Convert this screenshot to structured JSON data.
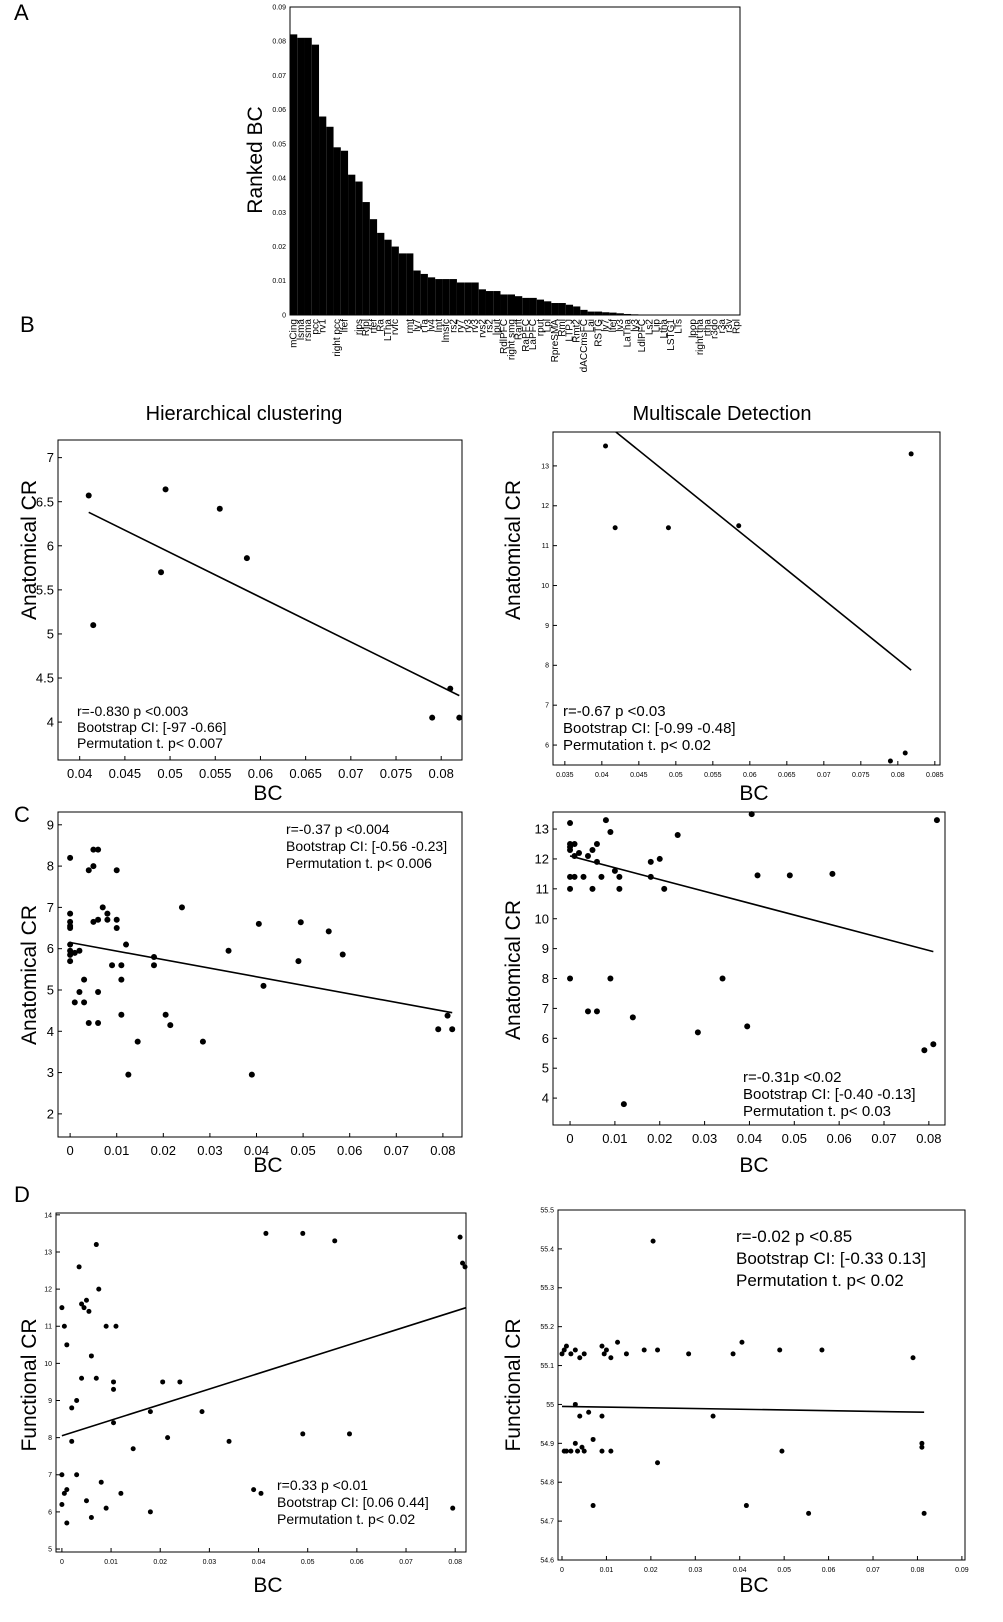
{
  "panel_labels": [
    "A",
    "B",
    "C",
    "D"
  ],
  "chart_data": [
    {
      "type": "bar",
      "ylabel": "Ranked BC",
      "color": "#000000",
      "categories": [
        "mCing",
        "lsma",
        "rsma",
        "pcc",
        "rv1",
        null,
        "right pcc",
        "lfef",
        null,
        "rips",
        "Rlpl",
        "rfef",
        "Ra",
        "LTha",
        "rvfc",
        null,
        "rmt",
        "ly7",
        "rTa",
        "lv4",
        "lmt",
        "lmsfc",
        "rs2",
        "ry7",
        "ry3",
        "rv3",
        "rvs2",
        "rs2",
        "lput",
        "RdlPFC",
        "right smg",
        "Rant",
        "RaPFC",
        "LaPFC",
        "rput",
        "Lpl",
        "RpreSMA",
        "Rml",
        "LTPJ",
        "Rmt2",
        "dACCmsFC",
        "Lai",
        "RSTG",
        "lv7",
        "lfef",
        "lv3",
        "LaTha",
        "ly3",
        "LdlPFC",
        "Ls2",
        "Lip",
        "Ltha",
        "LSTG1",
        "LTs",
        null,
        "lpop",
        "right tha",
        "rtha",
        "r3do",
        "r3a",
        "r3v",
        "Rpl"
      ],
      "values": [
        0.082,
        0.081,
        0.081,
        0.079,
        0.058,
        0.055,
        0.049,
        0.048,
        0.041,
        0.039,
        0.033,
        0.028,
        0.024,
        0.022,
        0.02,
        0.018,
        0.018,
        0.013,
        0.012,
        0.011,
        0.0105,
        0.0105,
        0.0105,
        0.0095,
        0.0095,
        0.0095,
        0.0075,
        0.007,
        0.007,
        0.006,
        0.006,
        0.0055,
        0.005,
        0.005,
        0.0045,
        0.004,
        0.0035,
        0.0035,
        0.003,
        0.0025,
        0.0015,
        0.001,
        0.001,
        0.0008,
        0.0007,
        0.0005,
        0.0003,
        0.0002,
        0,
        0,
        0,
        0,
        0,
        0,
        0,
        0,
        0,
        0,
        0,
        0,
        0,
        0
      ],
      "ylim": [
        0,
        0.09
      ],
      "yticks": [
        0,
        0.01,
        0.02,
        0.03,
        0.04,
        0.05,
        0.06,
        0.07,
        0.08,
        0.09
      ]
    },
    {
      "type": "scatter",
      "title": "Hierarchical clustering",
      "xlabel": "BC",
      "ylabel": "Anatomical CR",
      "color": "#000000",
      "x": [
        0.041,
        0.0415,
        0.049,
        0.0495,
        0.0555,
        0.0585,
        0.079,
        0.081,
        0.082
      ],
      "y": [
        6.57,
        5.1,
        5.7,
        6.64,
        6.42,
        5.86,
        4.05,
        4.38,
        4.05
      ],
      "fit": {
        "x": [
          0.041,
          0.082
        ],
        "y": [
          6.38,
          4.3
        ]
      },
      "annotations": [
        "r=-0.830 p <0.003",
        "Bootstrap CI: [-97 -0.66]",
        "Permutation t. p< 0.007"
      ],
      "xlim": [
        0.0376,
        0.0823
      ],
      "ylim": [
        3.57,
        7.2
      ],
      "xticks": [
        0.04,
        0.045,
        0.05,
        0.055,
        0.06,
        0.065,
        0.07,
        0.075,
        0.08
      ],
      "yticks": [
        4,
        4.5,
        5,
        5.5,
        6,
        6.5,
        7
      ]
    },
    {
      "type": "scatter",
      "title": "Multiscale Detection",
      "xlabel": "BC",
      "ylabel": "Anatomical CR",
      "color": "#000000",
      "x": [
        0.0405,
        0.0418,
        0.049,
        0.0585,
        0.0818,
        0.079,
        0.081
      ],
      "y": [
        13.5,
        11.45,
        11.45,
        11.5,
        13.3,
        5.6,
        5.8
      ],
      "fit": {
        "x": [
          0.0419,
          0.0818
        ],
        "y": [
          13.85,
          7.88
        ]
      },
      "annotations": [
        "r=-0.67 p <0.03",
        "Bootstrap CI: [-0.99 -0.48]",
        "Permutation t. p< 0.02"
      ],
      "xlim": [
        0.0334,
        0.0857
      ],
      "ylim": [
        5.5,
        13.85
      ],
      "xticks": [
        0.035,
        0.04,
        0.045,
        0.05,
        0.055,
        0.06,
        0.065,
        0.07,
        0.075,
        0.08,
        0.085
      ],
      "yticks": [
        6,
        7,
        8,
        9,
        10,
        11,
        12,
        13
      ]
    },
    {
      "type": "scatter",
      "xlabel": "BC",
      "ylabel": "Anatomical CR",
      "color": "#000000",
      "x": [
        0,
        0,
        0,
        0,
        0,
        0,
        0,
        0,
        0,
        0.001,
        0.001,
        0.002,
        0.002,
        0.003,
        0.003,
        0.004,
        0.004,
        0.005,
        0.005,
        0.005,
        0.006,
        0.006,
        0.006,
        0.006,
        0.007,
        0.008,
        0.008,
        0.009,
        0.01,
        0.01,
        0.01,
        0.011,
        0.011,
        0.011,
        0.012,
        0.0125,
        0.0145,
        0.018,
        0.018,
        0.0205,
        0.0215,
        0.024,
        0.0285,
        0.034,
        0.039,
        0.0405,
        0.0415,
        0.049,
        0.0495,
        0.0555,
        0.0585,
        0.079,
        0.081,
        0.082
      ],
      "y": [
        8.2,
        6.85,
        6.65,
        6.55,
        6.5,
        6.1,
        5.95,
        5.85,
        5.7,
        5.9,
        4.7,
        5.95,
        4.95,
        5.25,
        4.7,
        7.9,
        4.2,
        8.4,
        6.65,
        8.0,
        8.4,
        6.7,
        4.2,
        4.95,
        7.0,
        6.7,
        6.85,
        5.6,
        7.9,
        6.7,
        6.5,
        4.4,
        5.6,
        5.25,
        6.1,
        2.95,
        3.75,
        5.8,
        5.6,
        4.4,
        4.15,
        7.0,
        3.75,
        5.95,
        2.95,
        6.6,
        5.1,
        5.7,
        6.64,
        6.42,
        5.86,
        4.05,
        4.38,
        4.05
      ],
      "fit": {
        "x": [
          0,
          0.082
        ],
        "y": [
          6.15,
          4.45
        ]
      },
      "annotations": [
        "r=-0.37 p <0.004",
        "Bootstrap CI: [-0.56 -0.23]",
        "Permutation t. p< 0.006"
      ],
      "xlim": [
        -0.0026,
        0.0841
      ],
      "ylim": [
        1.44,
        9.31
      ],
      "xticks": [
        0,
        0.01,
        0.02,
        0.03,
        0.04,
        0.05,
        0.06,
        0.07,
        0.08
      ],
      "yticks": [
        2,
        3,
        4,
        5,
        6,
        7,
        8,
        9
      ]
    },
    {
      "type": "scatter",
      "xlabel": "BC",
      "ylabel": "Anatomical CR",
      "color": "#000000",
      "x": [
        0,
        0,
        0,
        0,
        0,
        0,
        0,
        0.001,
        0.001,
        0.001,
        0.002,
        0.003,
        0.004,
        0.004,
        0.005,
        0.005,
        0.006,
        0.006,
        0.006,
        0.007,
        0.008,
        0.009,
        0.009,
        0.01,
        0.011,
        0.011,
        0.012,
        0.014,
        0.018,
        0.018,
        0.02,
        0.021,
        0.024,
        0.0285,
        0.034,
        0.0395,
        0.0405,
        0.0418,
        0.049,
        0.0585,
        0.079,
        0.081,
        0.0818
      ],
      "y": [
        12.4,
        12.3,
        13.2,
        12.5,
        11.4,
        11.0,
        8.0,
        12.5,
        12.1,
        11.4,
        12.2,
        11.4,
        12.1,
        6.9,
        11.0,
        12.3,
        6.9,
        11.9,
        12.5,
        11.4,
        13.3,
        12.9,
        8.0,
        11.6,
        11.4,
        11.0,
        3.8,
        6.7,
        11.9,
        11.4,
        12.0,
        11.0,
        12.8,
        6.2,
        8.0,
        6.4,
        13.5,
        11.45,
        11.45,
        11.5,
        5.6,
        5.8,
        13.3
      ],
      "fit": {
        "x": [
          0,
          0.081
        ],
        "y": [
          12.1,
          8.9
        ]
      },
      "annotations": [
        "r=-0.31p <0.02",
        "Bootstrap CI: [-0.40 -0.13]",
        "Permutation t. p< 0.03"
      ],
      "xlim": [
        -0.0038,
        0.0836
      ],
      "ylim": [
        3.1,
        13.57
      ],
      "xticks": [
        0,
        0.01,
        0.02,
        0.03,
        0.04,
        0.05,
        0.06,
        0.07,
        0.08
      ],
      "yticks": [
        4,
        5,
        6,
        7,
        8,
        9,
        10,
        11,
        12,
        13
      ]
    },
    {
      "type": "scatter",
      "xlabel": "BC",
      "ylabel": "Functional CR",
      "color": "#000000",
      "x": [
        0,
        0.0005,
        0.001,
        0,
        0,
        0.0005,
        0.001,
        0.001,
        0.002,
        0.002,
        0.003,
        0.003,
        0.0035,
        0.004,
        0.004,
        0.0045,
        0.005,
        0.005,
        0.0055,
        0.006,
        0.006,
        0.007,
        0.007,
        0.0075,
        0.008,
        0.009,
        0.009,
        0.0105,
        0.0105,
        0.0105,
        0.011,
        0.012,
        0.0145,
        0.018,
        0.018,
        0.0205,
        0.0215,
        0.024,
        0.0285,
        0.034,
        0.039,
        0.0405,
        0.0415,
        0.049,
        0.049,
        0.0555,
        0.0585,
        0.0795,
        0.081,
        0.0815,
        0.082
      ],
      "y": [
        11.5,
        11.0,
        10.5,
        7.0,
        6.2,
        6.5,
        5.7,
        6.6,
        8.8,
        7.9,
        7.0,
        9.0,
        12.6,
        11.6,
        9.6,
        11.5,
        11.7,
        6.3,
        11.4,
        10.2,
        5.85,
        13.2,
        9.6,
        12.0,
        6.8,
        6.1,
        11.0,
        9.3,
        9.5,
        8.4,
        11.0,
        6.5,
        7.7,
        6.0,
        8.7,
        9.5,
        8.0,
        9.5,
        8.7,
        7.9,
        6.6,
        6.5,
        13.5,
        13.5,
        8.1,
        13.3,
        8.1,
        6.1,
        13.4,
        12.7,
        12.6
      ],
      "fit": {
        "x": [
          0,
          0.0822
        ],
        "y": [
          8.05,
          11.5
        ]
      },
      "annotations": [
        "r=0.33 p <0.01",
        "Bootstrap CI: [0.06 0.44]",
        "Permutation t. p< 0.02"
      ],
      "xlim": [
        -0.0012,
        0.0822
      ],
      "ylim": [
        4.92,
        14.05
      ],
      "xticks": [
        0,
        0.01,
        0.02,
        0.03,
        0.04,
        0.05,
        0.06,
        0.07,
        0.08
      ],
      "yticks": [
        5,
        6,
        7,
        8,
        9,
        10,
        11,
        12,
        13,
        14
      ]
    },
    {
      "type": "scatter",
      "xlabel": "BC",
      "ylabel": "Functional CR",
      "color": "#000000",
      "x": [
        0,
        0.0005,
        0.001,
        0.002,
        0.003,
        0.004,
        0.005,
        0.009,
        0.0095,
        0.01,
        0.011,
        0.0125,
        0.0145,
        0.0185,
        0.0215,
        0.0285,
        0.0385,
        0.0405,
        0.049,
        0.0585,
        0.079,
        0.0005,
        0.001,
        0.002,
        0.003,
        0.003,
        0.0035,
        0.004,
        0.0045,
        0.005,
        0.006,
        0.007,
        0.007,
        0.009,
        0.009,
        0.011,
        0.0215,
        0.034,
        0.0415,
        0.0495,
        0.0555,
        0.081,
        0.081,
        0.0815,
        0.0205
      ],
      "y": [
        55.13,
        55.14,
        55.15,
        55.13,
        55.14,
        55.12,
        55.13,
        55.15,
        55.13,
        55.14,
        55.12,
        55.16,
        55.13,
        55.14,
        55.14,
        55.13,
        55.13,
        55.16,
        55.14,
        55.14,
        55.12,
        54.88,
        54.88,
        54.88,
        55.0,
        54.9,
        54.88,
        54.97,
        54.89,
        54.88,
        54.98,
        54.91,
        54.74,
        54.88,
        54.97,
        54.88,
        54.85,
        54.97,
        54.74,
        54.88,
        54.72,
        54.9,
        54.89,
        54.72,
        55.42
      ],
      "fit": {
        "x": [
          0,
          0.0815
        ],
        "y": [
          54.995,
          54.98
        ]
      },
      "annotations": [
        "r=-0.02 p <0.85",
        "Bootstrap CI: [-0.33 0.13]",
        "Permutation t. p< 0.02"
      ],
      "xlim": [
        -0.0009,
        0.0907
      ],
      "ylim": [
        54.6,
        55.5
      ],
      "xticks": [
        0,
        0.01,
        0.02,
        0.03,
        0.04,
        0.05,
        0.06,
        0.07,
        0.08,
        0.09
      ],
      "yticks": [
        54.6,
        54.7,
        54.8,
        54.9,
        55,
        55.1,
        55.2,
        55.3,
        55.4,
        55.5
      ]
    }
  ]
}
